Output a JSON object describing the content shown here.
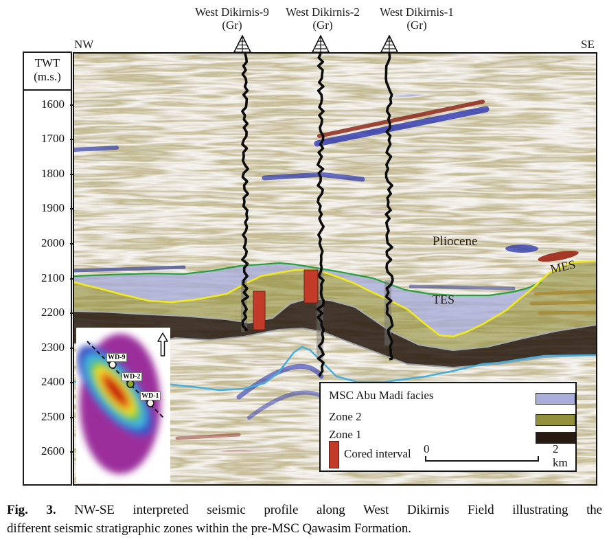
{
  "figure": {
    "direction_left": "NW",
    "direction_right": "SE",
    "well_headers": [
      {
        "name": "West Dikirnis-9",
        "log": "(Gr)"
      },
      {
        "name": "West Dikirnis-2",
        "log": "(Gr)"
      },
      {
        "name": "West Dikirnis-1",
        "log": "(Gr)"
      }
    ],
    "axis": {
      "title": "TWT",
      "units": "(m.s.)",
      "ticks": [
        "1600",
        "1700",
        "1800",
        "1900",
        "2000",
        "2100",
        "2200",
        "2300",
        "2400",
        "2500",
        "2600"
      ]
    },
    "annotations": {
      "pliocene": "Pliocene",
      "mes": "MES",
      "tes": "TES"
    },
    "inset_map": {
      "north_label": "N",
      "wells": [
        {
          "label": "WD-9"
        },
        {
          "label": "WD-2"
        },
        {
          "label": "WD-1"
        }
      ],
      "icons": {
        "north_arrow": "north-arrow-icon",
        "well_marker": "well-marker-icon"
      }
    },
    "legend": {
      "items": [
        {
          "label": "MSC Abu Madi facies",
          "color": "#a9aedb"
        },
        {
          "label": "Zone 2",
          "color": "#92903a"
        },
        {
          "label": "Zone 1",
          "color": "#271a10"
        }
      ],
      "cored_interval": {
        "label": "Cored interval",
        "color": "#c23b28"
      },
      "scale_bar": {
        "start": "0",
        "end": "2 km"
      }
    },
    "icons": {
      "well_head": "derrick-icon"
    },
    "caption": {
      "label": "Fig. 3.",
      "line1": "NW-SE interpreted seismic profile along West Dikirnis Field illustrating the",
      "line2": "different seismic stratigraphic zones within the pre-MSC Qawasim Formation."
    },
    "colors": {
      "horizon_tes_green": "#27a03c",
      "horizon_mes_yellow": "#f2ea1f",
      "horizon_gray": "#a8aeb2",
      "horizon_deep_blue": "#45aede",
      "zone_msc_fill": "#a7acd9",
      "zone2_fill": "#92903a",
      "zone1_fill": "#271a10",
      "cored_red": "#c23b28"
    }
  }
}
